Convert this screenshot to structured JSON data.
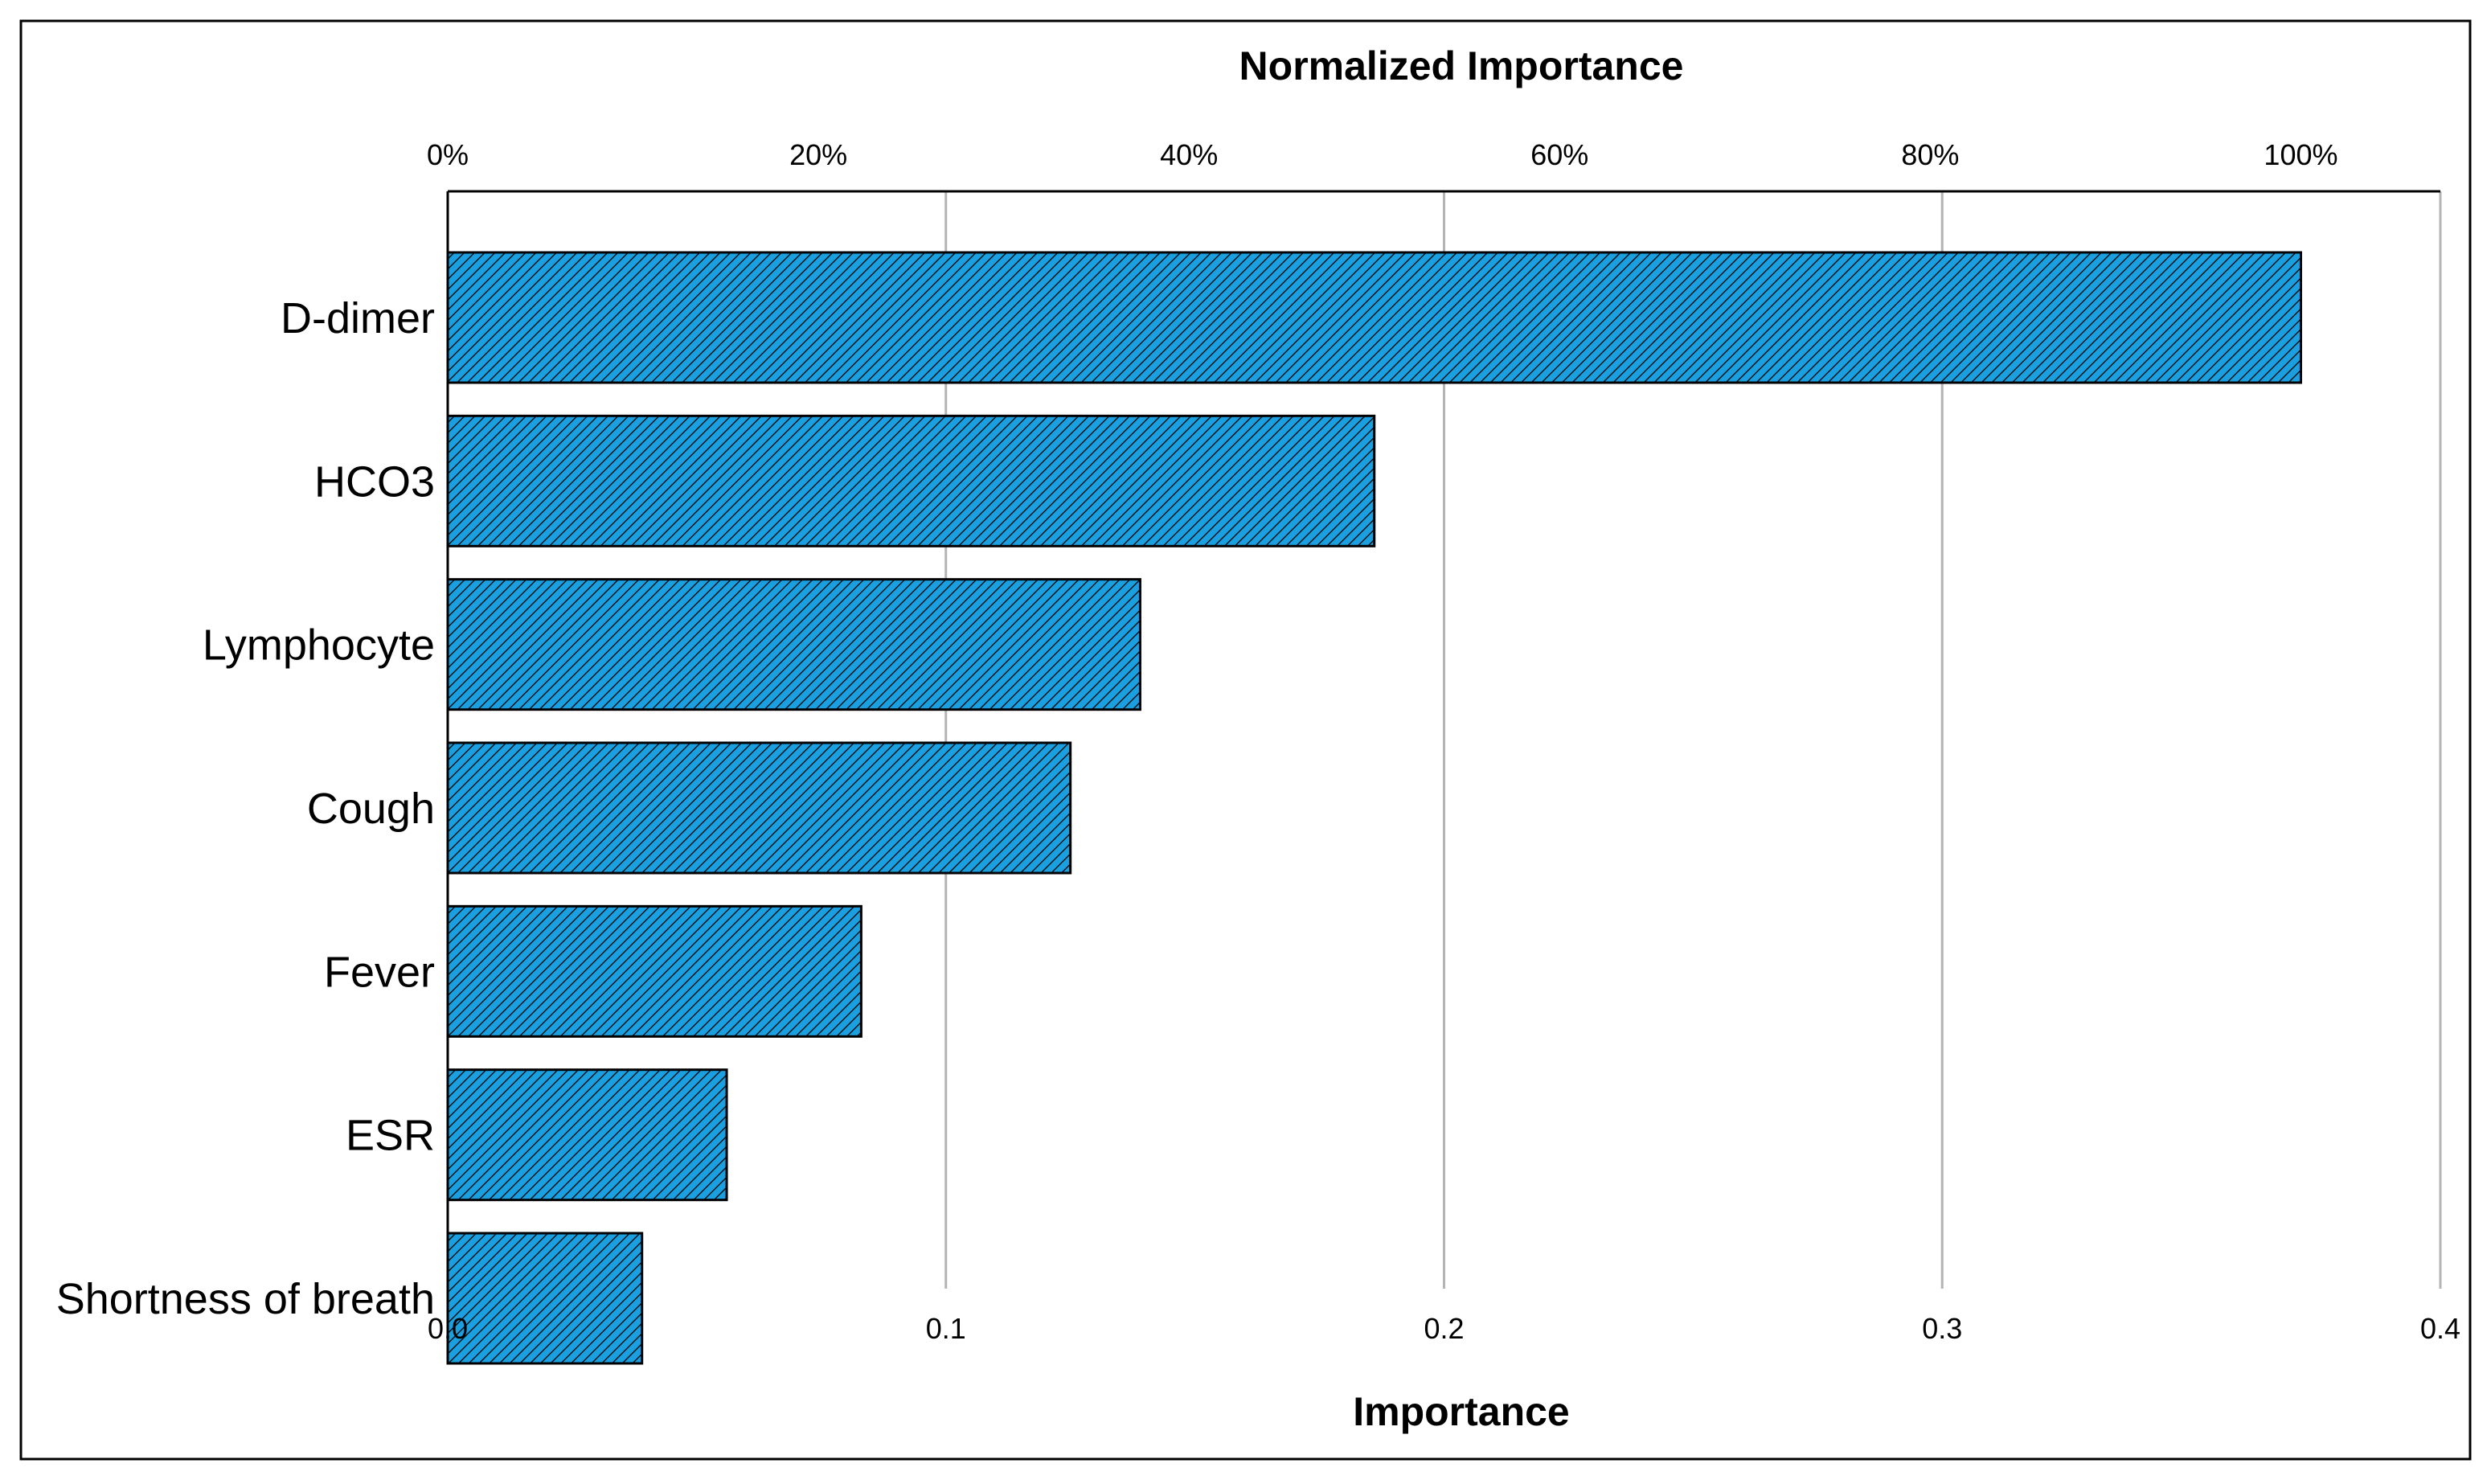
{
  "chart_data": {
    "type": "bar",
    "orientation": "horizontal",
    "categories": [
      "D-dimer",
      "HCO3",
      "Lymphocyte",
      "Cough",
      "Fever",
      "ESR",
      "Shortness of breath"
    ],
    "values": [
      0.372,
      0.186,
      0.139,
      0.125,
      0.083,
      0.056,
      0.039
    ],
    "xlabel": "Importance",
    "x2label": "Normalized Importance",
    "xlim": [
      0,
      0.4
    ],
    "x_ticks": [
      0,
      0.1,
      0.2,
      0.3,
      0.4
    ],
    "x_tick_labels": [
      "0.0",
      "0.1",
      "0.2",
      "0.3",
      "0.4"
    ],
    "x2_ticks": [
      0,
      20,
      40,
      60,
      80,
      100
    ],
    "x2_tick_labels": [
      "0%",
      "20%",
      "40%",
      "60%",
      "80%",
      "100%"
    ],
    "x2_max_value": 0.372,
    "grid": "vertical",
    "legend": "none",
    "colors": {
      "bar_fill": "#1aa0e0",
      "bar_hatch": "#000000",
      "grid": "#b4b4b4",
      "axis": "#000000"
    }
  }
}
